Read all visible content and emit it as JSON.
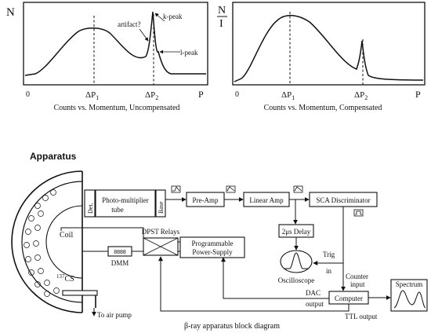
{
  "plot_left": {
    "y_label": "N",
    "x_origin": "0",
    "x_end": "P",
    "tick_p1": "ΔP",
    "tick_p1_sub": "1",
    "tick_p2": "ΔP",
    "tick_p2_sub": "2",
    "ann_artifact": "artifact?",
    "ann_kpeak": "k-peak",
    "ann_lpeak": "l-peak",
    "caption": "Counts vs. Momentum, Uncompensated"
  },
  "plot_right": {
    "y_label_top": "N",
    "y_label_bottom": "I",
    "x_origin": "0",
    "x_end": "P",
    "tick_p1": "ΔP",
    "tick_p1_sub": "1",
    "tick_p2": "ΔP",
    "tick_p2_sub": "2",
    "caption": "Counts vs. Momentum, Compensated"
  },
  "section_title": "Apparatus",
  "diagram": {
    "det": "Det.",
    "pmt_line1": "Photo-multiplier",
    "pmt_line2": "tube",
    "base": "Base",
    "preamp": "Pre-Amp",
    "linear_amp": "Linear Amp",
    "sca": "SCA Discriminator",
    "delay": "2μs Delay",
    "dpst": "DPST Relays",
    "prog_line1": "Programmable",
    "prog_line2": "Power-Supply",
    "dmm": "DMM",
    "dmm_display": "8888",
    "coil": "Coil",
    "source_mass": "137",
    "source": "CS",
    "oscilloscope": "Oscilloscope",
    "trig_line1": "Trig",
    "trig_line2": "in",
    "counter_line1": "Counter",
    "counter_line2": "input",
    "computer": "Computer",
    "spectrum": "Spectrum",
    "dac_line1": "DAC",
    "dac_line2": "output",
    "ttl": "TTL output",
    "air_pump": "To air pump",
    "caption": "β-ray apparatus block diagram"
  }
}
